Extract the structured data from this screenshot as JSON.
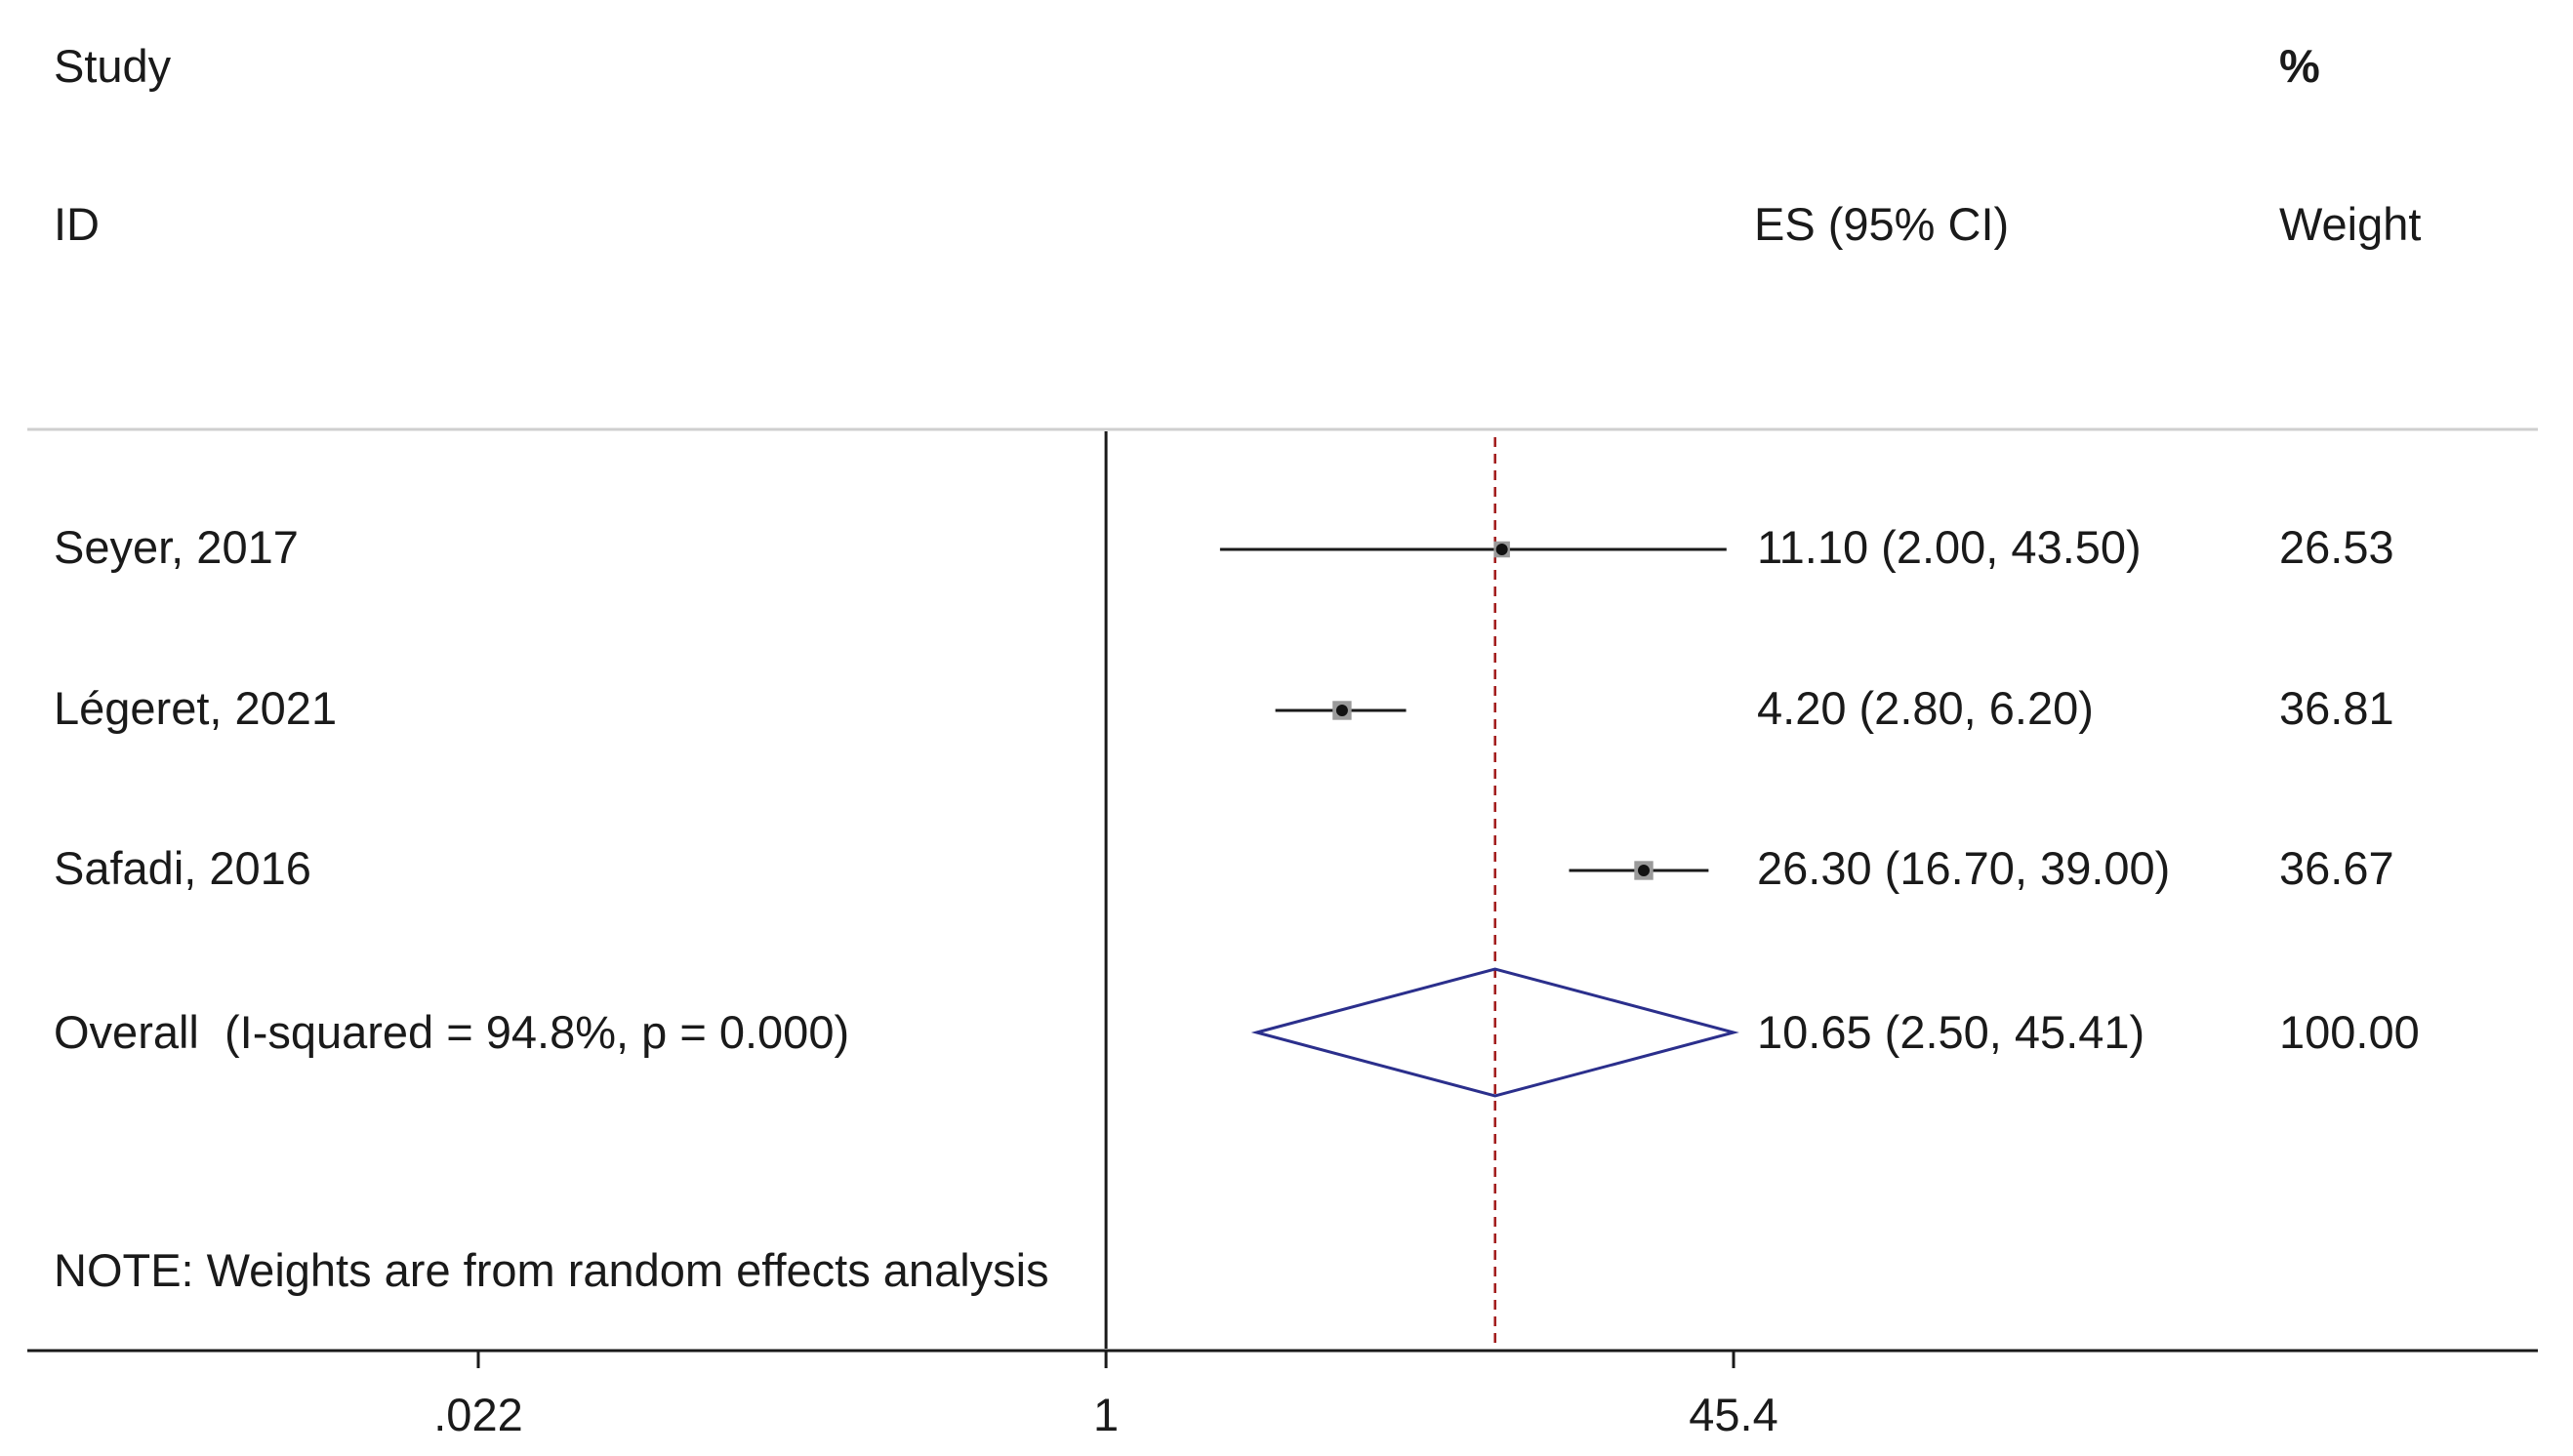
{
  "header": {
    "study_label": "Study",
    "id_label": "ID",
    "es_label": "ES (95% CI)",
    "pct_label": "%",
    "weight_label": "Weight"
  },
  "note": "NOTE: Weights are from random effects analysis",
  "chart_data": {
    "type": "forest",
    "x_scale": "log",
    "xlim": [
      0.022,
      45.4
    ],
    "x_ticks": [
      {
        "value": 0.022,
        "label": ".022"
      },
      {
        "value": 1,
        "label": "1"
      },
      {
        "value": 45.4,
        "label": "45.4"
      }
    ],
    "null_line": 1,
    "overall_line": 10.65,
    "studies": [
      {
        "id": "Seyer, 2017",
        "es": 11.1,
        "lo": 2.0,
        "hi": 43.5,
        "es_text": "11.10 (2.00, 43.50)",
        "weight": 26.53,
        "weight_text": "26.53"
      },
      {
        "id": "Légeret, 2021",
        "es": 4.2,
        "lo": 2.8,
        "hi": 6.2,
        "es_text": "4.20 (2.80, 6.20)",
        "weight": 36.81,
        "weight_text": "36.81"
      },
      {
        "id": "Safadi, 2016",
        "es": 26.3,
        "lo": 16.7,
        "hi": 39.0,
        "es_text": "26.30 (16.70, 39.00)",
        "weight": 36.67,
        "weight_text": "36.67"
      }
    ],
    "overall": {
      "label": "Overall  (I-squared = 94.8%, p = 0.000)",
      "es": 10.65,
      "lo": 2.5,
      "hi": 45.41,
      "es_text": "10.65 (2.50, 45.41)",
      "weight_text": "100.00"
    },
    "colors": {
      "overall_diamond": "#2b2f8c",
      "overall_line": "#a01818",
      "axis": "#1a1a1a",
      "box": "#9a9a9a"
    }
  }
}
